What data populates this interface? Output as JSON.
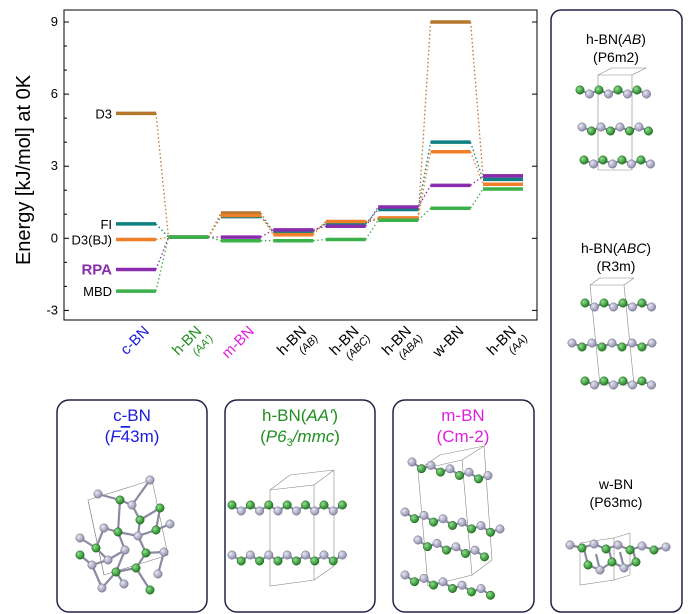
{
  "chart_data": {
    "type": "level-diagram",
    "ylabel": "Energy [kJ/mol] at 0K",
    "ylim": [
      -3.4,
      9.5
    ],
    "yticks": [
      -3,
      0,
      3,
      6,
      9
    ],
    "categories": [
      {
        "main": "c-BN",
        "sub": "",
        "color": "#1a1adf"
      },
      {
        "main": "h-BN",
        "sub": "(AA')",
        "color": "#1f8f1f"
      },
      {
        "main": "m-BN",
        "sub": "",
        "color": "#e020e0"
      },
      {
        "main": "h-BN",
        "sub": "(AB)",
        "color": "#000000"
      },
      {
        "main": "h-BN",
        "sub": "(ABC)",
        "color": "#000000"
      },
      {
        "main": "h-BN",
        "sub": "(ABA)",
        "color": "#000000"
      },
      {
        "main": "w-BN",
        "sub": "",
        "color": "#000000"
      },
      {
        "main": "h-BN",
        "sub": "(AA)",
        "color": "#000000"
      }
    ],
    "series": [
      {
        "name": "D3",
        "color": "#b5772e",
        "values": [
          5.2,
          0.05,
          1.05,
          0.25,
          0.65,
          0.8,
          9.0,
          2.6
        ],
        "label_bold": false
      },
      {
        "name": "FI",
        "color": "#0f8080",
        "values": [
          0.6,
          0.05,
          0.9,
          0.3,
          0.6,
          1.2,
          4.0,
          2.45
        ],
        "label_bold": false
      },
      {
        "name": "D3(BJ)",
        "color": "#f07f2a",
        "values": [
          -0.05,
          0.05,
          0.95,
          0.15,
          0.7,
          0.85,
          3.6,
          2.25
        ],
        "label_bold": false
      },
      {
        "name": "RPA",
        "color": "#8b2cae",
        "values": [
          -1.3,
          0.05,
          0.05,
          0.35,
          0.5,
          1.3,
          2.2,
          2.6
        ],
        "label_bold": true
      },
      {
        "name": "MBD",
        "color": "#3cb04a",
        "values": [
          -2.2,
          0.05,
          -0.1,
          -0.1,
          -0.05,
          0.75,
          1.25,
          2.05
        ],
        "label_bold": false
      }
    ]
  },
  "structures": {
    "cbn": {
      "name": "c-BN",
      "group_pre": "F",
      "group_bar": "4",
      "group_post": "3m",
      "color": "#1a1adf"
    },
    "hbn_aa": {
      "name": "h-BN(",
      "name_it": "AA'",
      "name_post": ")",
      "group_it": "P6",
      "group_sub": "3",
      "group_post": "/mmc",
      "color": "#1f8f1f"
    },
    "mbn": {
      "name": "m-BN",
      "group": "(Cm-2)",
      "color": "#e020e0"
    },
    "hbn_ab": {
      "name": "h-BN(",
      "name_it": "AB",
      "name_post": ")",
      "group": "(P6m2)"
    },
    "hbn_abc": {
      "name": "h-BN(",
      "name_it": "ABC",
      "name_post": ")",
      "group": "(R3m)"
    },
    "wbn": {
      "name": "w-BN",
      "group": "(P63mc)"
    }
  }
}
